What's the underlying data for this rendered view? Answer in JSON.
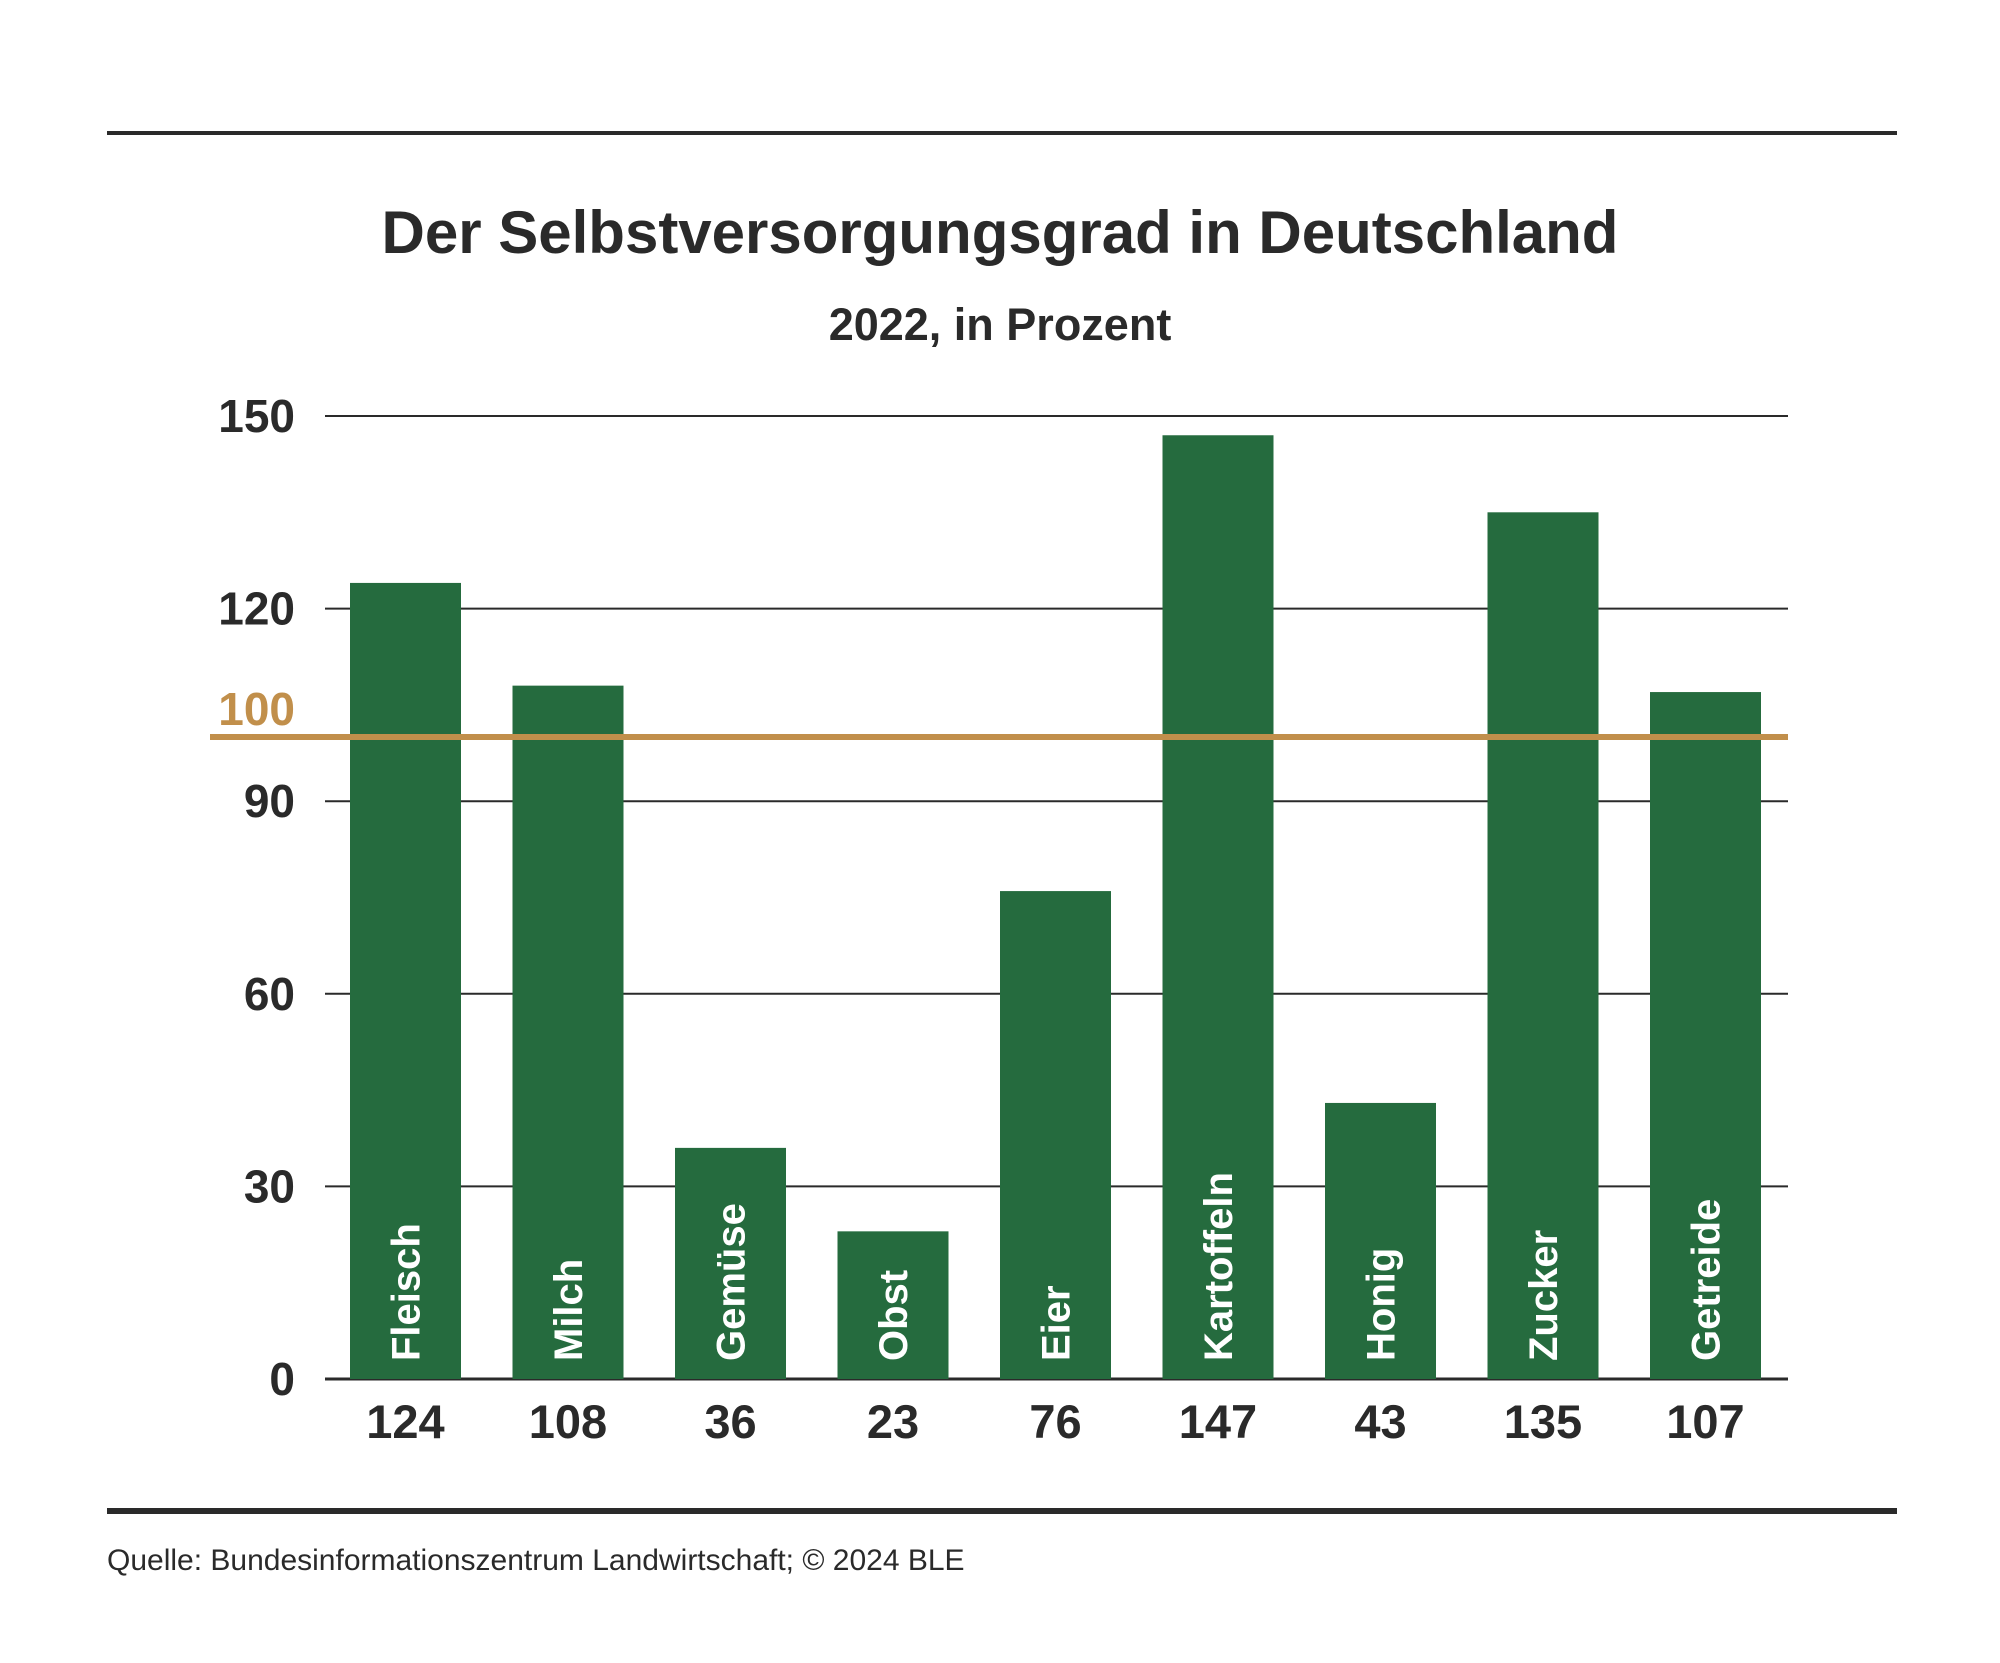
{
  "chart_data": {
    "type": "bar",
    "title": "Der Selbstversorgungsgrad in Deutschland",
    "subtitle": "2022, in Prozent",
    "categories": [
      "Fleisch",
      "Milch",
      "Gemüse",
      "Obst",
      "Eier",
      "Kartoffeln",
      "Honig",
      "Zucker",
      "Getreide"
    ],
    "values": [
      124,
      108,
      36,
      23,
      76,
      147,
      43,
      135,
      107
    ],
    "value_labels": [
      "124",
      "108",
      "36",
      "23",
      "76",
      "147",
      "43",
      "135",
      "107"
    ],
    "yticks": [
      0,
      30,
      60,
      90,
      120,
      150
    ],
    "ytick_labels": [
      "0",
      "30",
      "60",
      "90",
      "120",
      "150"
    ],
    "ylim": [
      0,
      150
    ],
    "reference_line": {
      "value": 100,
      "label": "100",
      "color": "#c18f4b"
    },
    "grid": true,
    "bar_color": "#256b3e",
    "source": "Quelle: Bundesinformationszentrum Landwirtschaft; © 2024 BLE"
  }
}
